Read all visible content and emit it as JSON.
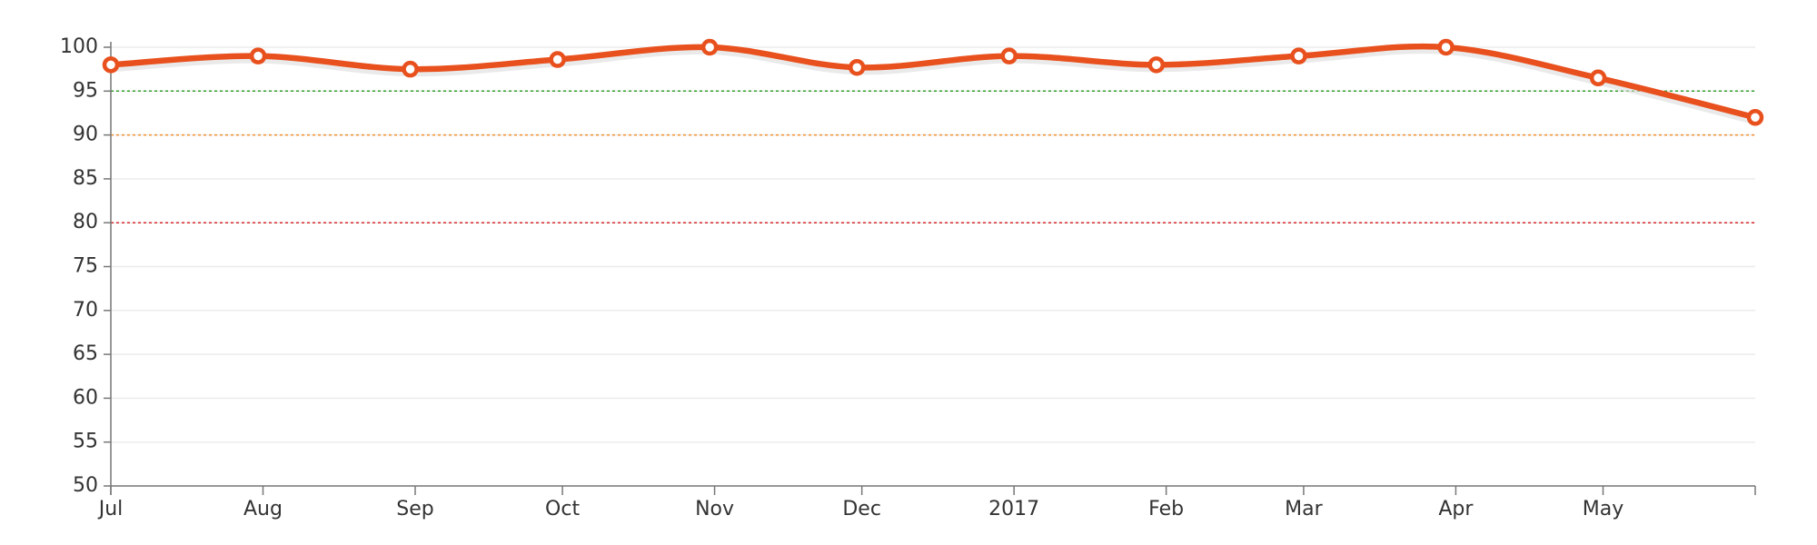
{
  "chart_data": {
    "type": "line",
    "title": "",
    "xlabel": "",
    "ylabel": "",
    "ylim": [
      50,
      100
    ],
    "y_ticks": [
      50,
      55,
      60,
      65,
      70,
      75,
      80,
      85,
      90,
      95,
      100
    ],
    "x_range": [
      "2016-07-01",
      "2017-06-01"
    ],
    "x_ticks": [
      {
        "date": "2016-07-01",
        "label": "Jul"
      },
      {
        "date": "2016-08-01",
        "label": "Aug"
      },
      {
        "date": "2016-09-01",
        "label": "Sep"
      },
      {
        "date": "2016-10-01",
        "label": "Oct"
      },
      {
        "date": "2016-11-01",
        "label": "Nov"
      },
      {
        "date": "2016-12-01",
        "label": "Dec"
      },
      {
        "date": "2017-01-01",
        "label": "2017"
      },
      {
        "date": "2017-02-01",
        "label": "Feb"
      },
      {
        "date": "2017-03-01",
        "label": "Mar"
      },
      {
        "date": "2017-04-01",
        "label": "Apr"
      },
      {
        "date": "2017-05-01",
        "label": "May"
      }
    ],
    "grid": true,
    "legend": "none",
    "reference_lines": [
      {
        "y": 95,
        "color": "#33a02c"
      },
      {
        "y": 90,
        "color": "#f28e2b"
      },
      {
        "y": 80,
        "color": "#d62728"
      }
    ],
    "series": [
      {
        "color": "#e8501d",
        "points": [
          {
            "x": "2016-07-01",
            "y": 98
          },
          {
            "x": "2016-07-31",
            "y": 99
          },
          {
            "x": "2016-08-31",
            "y": 97.5
          },
          {
            "x": "2016-09-30",
            "y": 98.6
          },
          {
            "x": "2016-10-31",
            "y": 100
          },
          {
            "x": "2016-11-30",
            "y": 97.7
          },
          {
            "x": "2016-12-31",
            "y": 99
          },
          {
            "x": "2017-01-30",
            "y": 98
          },
          {
            "x": "2017-02-28",
            "y": 99
          },
          {
            "x": "2017-03-30",
            "y": 100
          },
          {
            "x": "2017-04-30",
            "y": 96.5
          },
          {
            "x": "2017-06-01",
            "y": 92
          }
        ]
      }
    ]
  }
}
